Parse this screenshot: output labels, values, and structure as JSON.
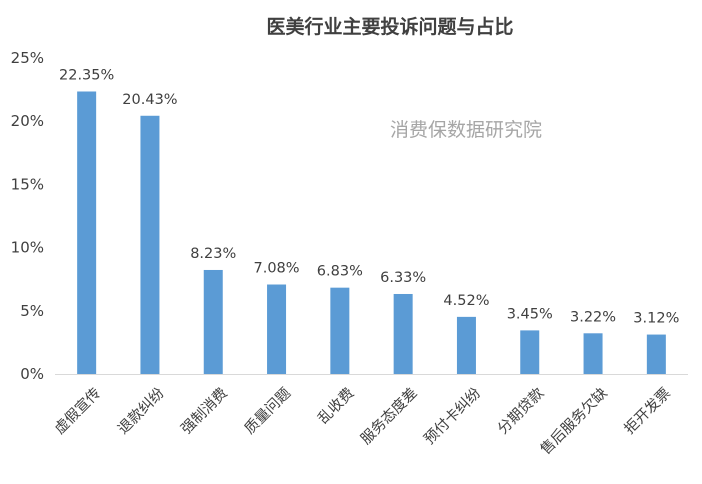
{
  "chart_data": {
    "type": "bar",
    "title": "医美行业主要投诉问题与占比",
    "watermark": "消费保数据研究院",
    "categories": [
      "虚假宣传",
      "退款纠纷",
      "强制消费",
      "质量问题",
      "乱收费",
      "服务态度差",
      "预付卡纠纷",
      "分期贷款",
      "售后服务欠缺",
      "拒开发票"
    ],
    "values": [
      22.35,
      20.43,
      8.23,
      7.08,
      6.83,
      6.33,
      4.52,
      3.45,
      3.22,
      3.12
    ],
    "value_labels": [
      "22.35%",
      "20.43%",
      "8.23%",
      "7.08%",
      "6.83%",
      "6.33%",
      "4.52%",
      "3.45%",
      "3.22%",
      "3.12%"
    ],
    "yticks": [
      "0%",
      "5%",
      "10%",
      "15%",
      "20%",
      "25%"
    ],
    "ylim": [
      0,
      25
    ],
    "grid": false,
    "bar_color": "#5b9bd5",
    "axis_color": "#d9d9d9"
  }
}
